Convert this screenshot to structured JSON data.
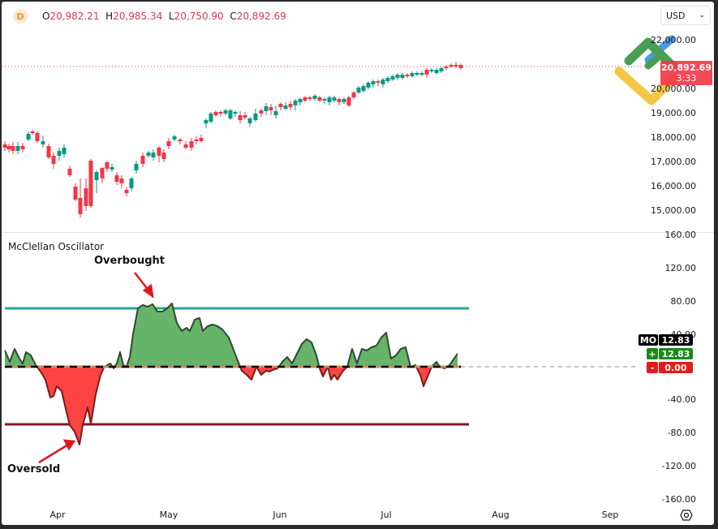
{
  "header": {
    "interval_badge": "D",
    "ohlc": {
      "open_label": "O",
      "open": "20,982.21",
      "high_label": "H",
      "high": "20,985.34",
      "low_label": "L",
      "low": "20,750.90",
      "close_label": "C",
      "close": "20,892.69"
    },
    "currency": "USD"
  },
  "price_axis": {
    "ticks": [
      "22,000.00",
      "20,000.00",
      "19,000.00",
      "18,000.00",
      "17,000.00",
      "16,000.00",
      "15,000.00"
    ],
    "last_price": "20,892.69",
    "countdown": "3:33",
    "last_price_color": "#f23645"
  },
  "indicator": {
    "title": "McClellan Oscillator",
    "axis_ticks": [
      "160.00",
      "120.00",
      "80.00",
      "40.00",
      "-40.00",
      "-80.00",
      "-120.00",
      "-160.00"
    ],
    "tags": {
      "mo_label": "MO",
      "mo_value": "12.83",
      "plus_label": "+",
      "plus_value": "12.83",
      "minus_label": "-",
      "minus_value": "0.00"
    },
    "overbought_level": 70,
    "oversold_level": -70,
    "colors": {
      "overbought_line": "#26a69a",
      "oversold_line": "#801922",
      "positive_fill": "#66b36a",
      "negative_fill": "#ff4242"
    }
  },
  "annotations": {
    "overbought": "Overbought",
    "oversold": "Oversold"
  },
  "time_axis": {
    "months": [
      "Apr",
      "May",
      "Jun",
      "Jul",
      "Aug",
      "Sep"
    ]
  },
  "colors": {
    "up": "#089981",
    "down": "#f23645"
  }
}
